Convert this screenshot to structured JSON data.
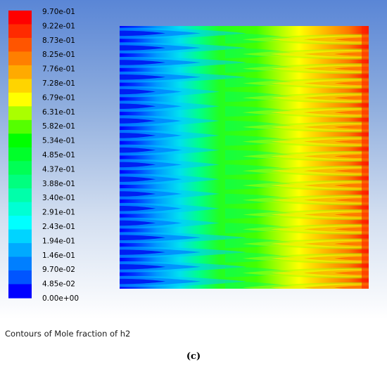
{
  "colorbar": {
    "labels": [
      "9.70e-01",
      "9.22e-01",
      "8.73e-01",
      "8.25e-01",
      "7.76e-01",
      "7.28e-01",
      "6.79e-01",
      "6.31e-01",
      "5.82e-01",
      "5.34e-01",
      "4.85e-01",
      "4.37e-01",
      "3.88e-01",
      "3.40e-01",
      "2.91e-01",
      "2.43e-01",
      "1.94e-01",
      "1.46e-01",
      "9.70e-02",
      "4.85e-02",
      "0.00e+00"
    ],
    "colors": [
      "#ff0000",
      "#ff2a00",
      "#ff5500",
      "#ff7f00",
      "#ffaa00",
      "#ffd400",
      "#ffff00",
      "#aaff00",
      "#55ff00",
      "#00ff00",
      "#00ff2a",
      "#00ff55",
      "#00ff7f",
      "#00ffaa",
      "#00ffd4",
      "#00ffff",
      "#00d4ff",
      "#00aaff",
      "#007fff",
      "#0055ff",
      "#0000ff"
    ],
    "min": 0,
    "max": 0.97
  },
  "caption": "Contours of Mole fraction of h2",
  "panel_label": "(c)"
}
